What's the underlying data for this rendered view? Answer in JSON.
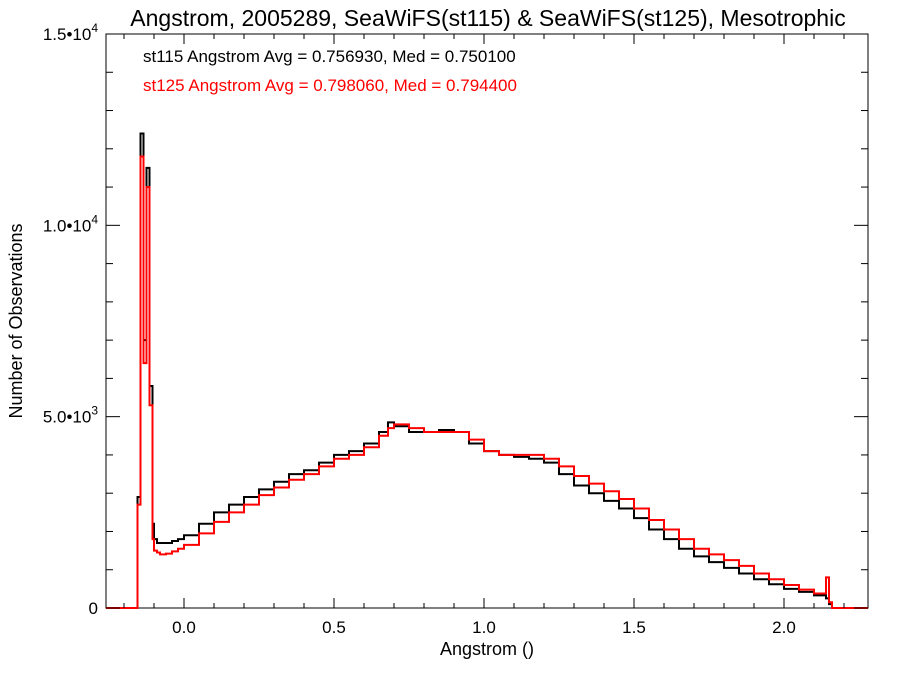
{
  "chart_data": {
    "type": "line",
    "title": "Angstrom, 2005289, SeaWiFS(st115) & SeaWiFS(st125), Mesotrophic",
    "xlabel": "Angstrom ()",
    "ylabel": "Number of Observations",
    "xlim": [
      -0.26,
      2.28
    ],
    "ylim": [
      0,
      15000
    ],
    "x_ticks": [
      "0.0",
      "0.5",
      "1.0",
      "1.5",
      "2.0"
    ],
    "y_ticks": [
      {
        "value": 0,
        "mantissa": "0",
        "exp": ""
      },
      {
        "value": 5000,
        "mantissa": "5.0•10",
        "exp": "3"
      },
      {
        "value": 10000,
        "mantissa": "1.0•10",
        "exp": "4"
      },
      {
        "value": 15000,
        "mantissa": "1.5•10",
        "exp": "4"
      }
    ],
    "annotations": [
      {
        "text": "st115 Angstrom Avg = 0.756930, Med = 0.750100",
        "color": "#000000"
      },
      {
        "text": "st125 Angstrom Avg = 0.798060, Med = 0.794400",
        "color": "#ff0000"
      }
    ],
    "grid": false,
    "step": true,
    "series": [
      {
        "name": "st115",
        "color": "#000000",
        "x": [
          -0.26,
          -0.17,
          -0.155,
          -0.145,
          -0.135,
          -0.125,
          -0.115,
          -0.105,
          -0.1,
          -0.09,
          -0.08,
          -0.06,
          -0.04,
          -0.02,
          0.0,
          0.05,
          0.1,
          0.15,
          0.2,
          0.25,
          0.3,
          0.35,
          0.4,
          0.45,
          0.5,
          0.55,
          0.6,
          0.65,
          0.68,
          0.7,
          0.75,
          0.8,
          0.85,
          0.9,
          0.95,
          1.0,
          1.05,
          1.1,
          1.15,
          1.2,
          1.25,
          1.3,
          1.35,
          1.4,
          1.45,
          1.5,
          1.55,
          1.6,
          1.65,
          1.7,
          1.75,
          1.8,
          1.85,
          1.9,
          1.95,
          2.0,
          2.05,
          2.1,
          2.14,
          2.15,
          2.16,
          2.28
        ],
        "y": [
          0,
          0,
          2900,
          12400,
          7000,
          11500,
          5800,
          2200,
          1800,
          1700,
          1700,
          1700,
          1750,
          1800,
          1900,
          2200,
          2500,
          2700,
          2900,
          3100,
          3300,
          3500,
          3600,
          3800,
          4000,
          4100,
          4300,
          4600,
          4850,
          4750,
          4600,
          4600,
          4650,
          4600,
          4300,
          4100,
          4000,
          3950,
          3900,
          3800,
          3500,
          3200,
          3000,
          2800,
          2600,
          2350,
          2050,
          1800,
          1550,
          1350,
          1200,
          1050,
          900,
          750,
          620,
          500,
          420,
          330,
          250,
          100,
          0,
          0
        ]
      },
      {
        "name": "st125",
        "color": "#ff0000",
        "x": [
          -0.26,
          -0.17,
          -0.155,
          -0.145,
          -0.135,
          -0.125,
          -0.115,
          -0.105,
          -0.1,
          -0.09,
          -0.08,
          -0.06,
          -0.04,
          -0.02,
          0.0,
          0.05,
          0.1,
          0.15,
          0.2,
          0.25,
          0.3,
          0.35,
          0.4,
          0.45,
          0.5,
          0.55,
          0.6,
          0.65,
          0.68,
          0.7,
          0.75,
          0.8,
          0.85,
          0.9,
          0.95,
          1.0,
          1.05,
          1.1,
          1.15,
          1.2,
          1.25,
          1.3,
          1.35,
          1.4,
          1.45,
          1.5,
          1.55,
          1.6,
          1.65,
          1.7,
          1.75,
          1.8,
          1.85,
          1.9,
          1.95,
          2.0,
          2.05,
          2.1,
          2.14,
          2.15,
          2.16,
          2.28
        ],
        "y": [
          0,
          0,
          2700,
          11800,
          6400,
          11000,
          5300,
          1800,
          1500,
          1450,
          1400,
          1420,
          1480,
          1550,
          1650,
          1950,
          2250,
          2500,
          2700,
          2950,
          3150,
          3350,
          3500,
          3700,
          3900,
          4000,
          4200,
          4500,
          4700,
          4800,
          4700,
          4600,
          4600,
          4600,
          4400,
          4100,
          4000,
          4000,
          4000,
          3900,
          3700,
          3450,
          3250,
          3050,
          2850,
          2600,
          2300,
          2050,
          1800,
          1550,
          1400,
          1250,
          1100,
          900,
          750,
          600,
          480,
          380,
          800,
          150,
          0,
          0
        ]
      }
    ]
  }
}
